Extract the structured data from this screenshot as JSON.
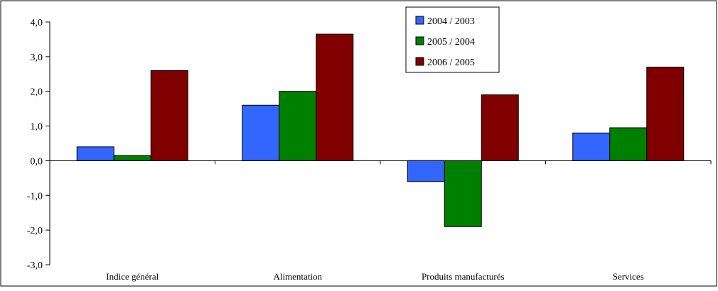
{
  "chart_data": {
    "type": "bar",
    "title": "",
    "xlabel": "",
    "ylabel": "",
    "categories": [
      "Indice général",
      "Alimentation",
      "Produits manufacturés",
      "Services"
    ],
    "series": [
      {
        "name": "2004 / 2003",
        "values": [
          0.4,
          1.6,
          -0.6,
          0.8
        ],
        "color": "#3366ff"
      },
      {
        "name": "2005 / 2004",
        "values": [
          0.15,
          2.0,
          -1.9,
          0.95
        ],
        "color": "#008000"
      },
      {
        "name": "2006 / 2005",
        "values": [
          2.6,
          3.65,
          1.9,
          2.7
        ],
        "color": "#800000"
      }
    ],
    "ylim": [
      -3.0,
      4.0
    ],
    "yticks": [
      4.0,
      3.0,
      2.0,
      1.0,
      0.0,
      -1.0,
      -2.0,
      -3.0
    ],
    "ytick_labels": [
      "4,0",
      "3,0",
      "2,0",
      "1,0",
      "0,0",
      "-1,0",
      "-2,0",
      "-3,0"
    ],
    "grid": false,
    "legend_position": "top-center"
  }
}
